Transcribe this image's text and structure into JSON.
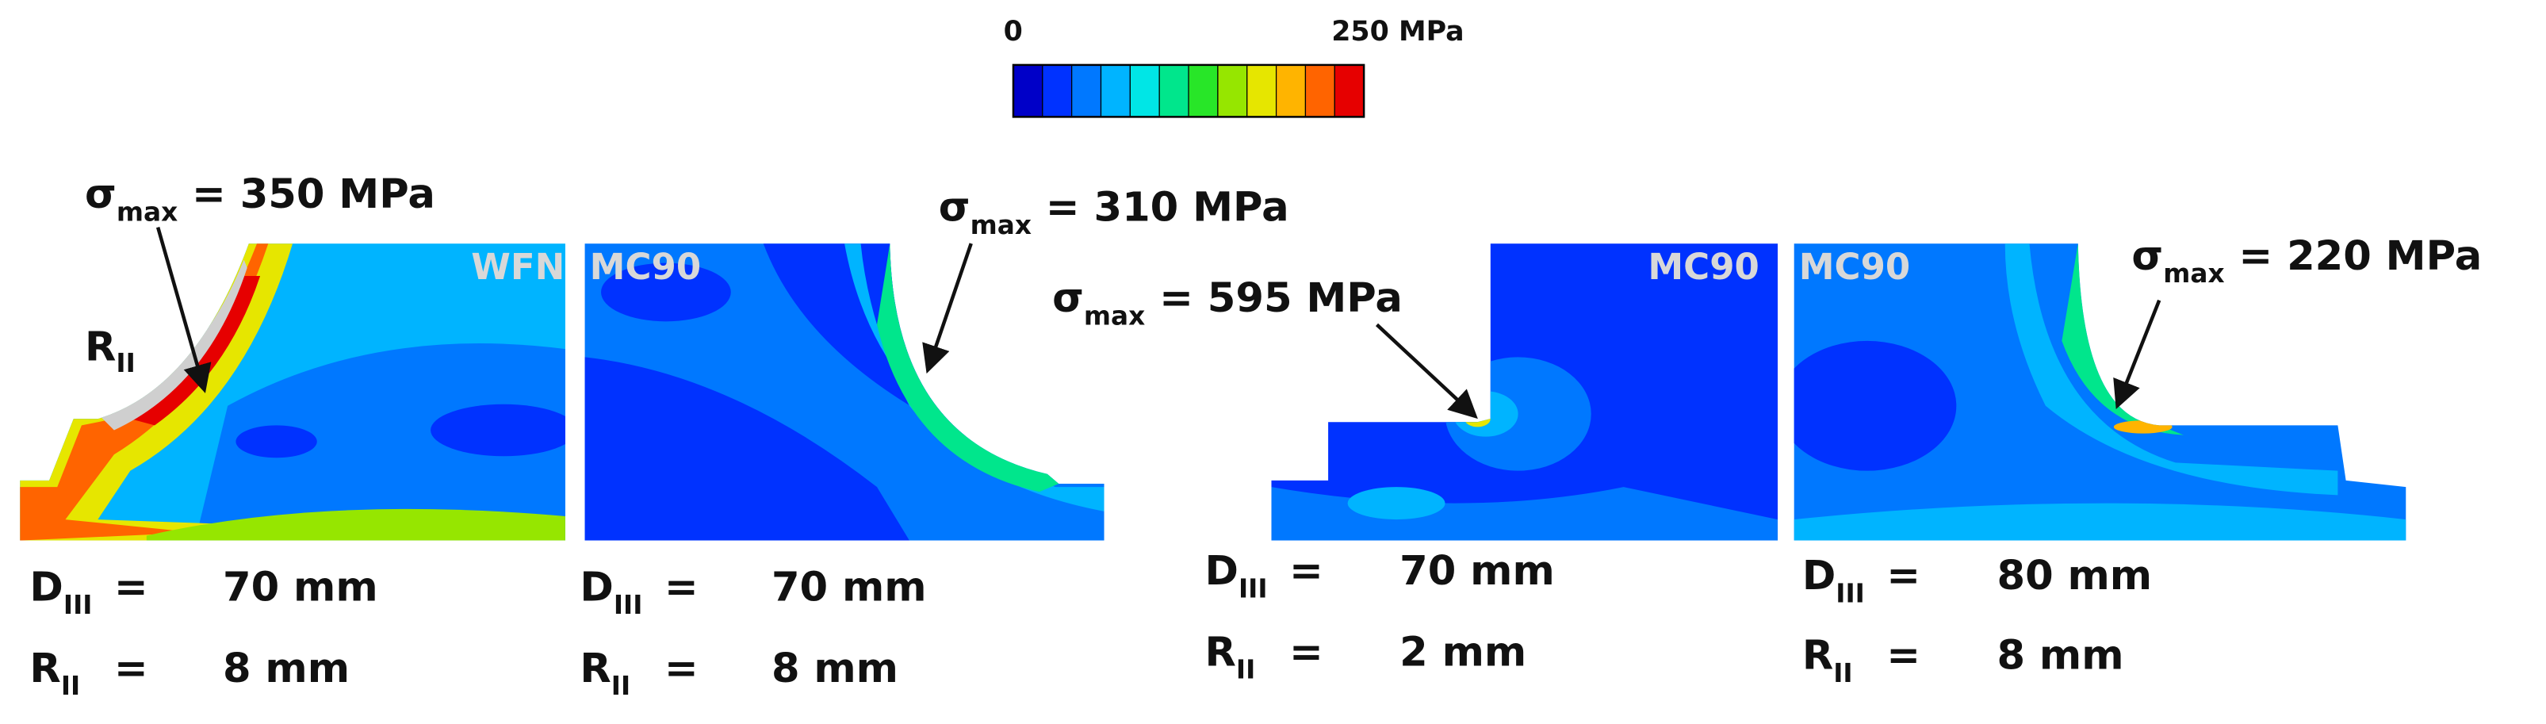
{
  "colorbar": {
    "min_label": "0",
    "max_label": "250 MPa",
    "colors": [
      "#0000c8",
      "#0032ff",
      "#0078ff",
      "#00b4ff",
      "#00e6e6",
      "#00e68c",
      "#28e628",
      "#96e600",
      "#e6e600",
      "#ffb400",
      "#ff6400",
      "#e60000"
    ]
  },
  "radius_label": {
    "symbol": "R",
    "sub": "II"
  },
  "panels": [
    {
      "tag": "WFN",
      "sigma": {
        "symbol": "σ",
        "sub": "max",
        "text": " = 350 MPa"
      },
      "d": {
        "symbol": "D",
        "sub": "III",
        "eq": "=",
        "value": "70 mm"
      },
      "r": {
        "symbol": "R",
        "sub": "II",
        "eq": "=",
        "value": "8 mm"
      }
    },
    {
      "tag": "MC90",
      "sigma": {
        "symbol": "σ",
        "sub": "max",
        "text": " = 310 MPa"
      },
      "d": {
        "symbol": "D",
        "sub": "III",
        "eq": "=",
        "value": "70 mm"
      },
      "r": {
        "symbol": "R",
        "sub": "II",
        "eq": "=",
        "value": "8 mm"
      }
    },
    {
      "tag": "MC90",
      "sigma": {
        "symbol": "σ",
        "sub": "max",
        "text": " = 595 MPa"
      },
      "d": {
        "symbol": "D",
        "sub": "III",
        "eq": "=",
        "value": "70 mm"
      },
      "r": {
        "symbol": "R",
        "sub": "II",
        "eq": "=",
        "value": "2 mm"
      }
    },
    {
      "tag": "MC90",
      "sigma": {
        "symbol": "σ",
        "sub": "max",
        "text": " = 220 MPa"
      },
      "d": {
        "symbol": "D",
        "sub": "III",
        "eq": "=",
        "value": "80 mm"
      },
      "r": {
        "symbol": "R",
        "sub": "II",
        "eq": "=",
        "value": "8 mm"
      }
    }
  ]
}
